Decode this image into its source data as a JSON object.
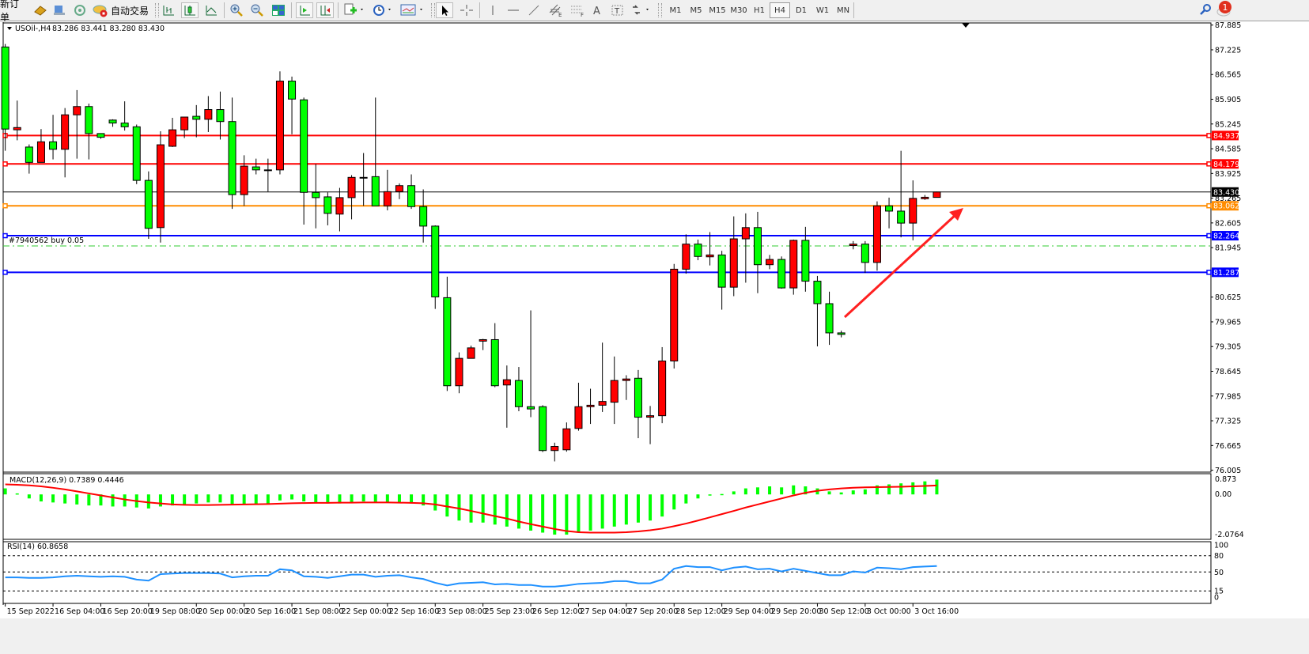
{
  "toolbar": {
    "new_order_label": "新订单",
    "auto_trading_label": "自动交易",
    "periods": [
      "M1",
      "M5",
      "M15",
      "M30",
      "H1",
      "H4",
      "D1",
      "W1",
      "MN"
    ],
    "active_period": "H4",
    "notification_count": "1",
    "icons": [
      "new-order-icon",
      "market-watch-icon",
      "navigator-icon",
      "signals-icon",
      "auto-trading-icon",
      "bar-chart-icon",
      "candlestick-icon",
      "line-chart-icon",
      "zoom-in-icon",
      "zoom-out-icon",
      "tile-windows-icon",
      "auto-scroll-icon",
      "chart-shift-icon",
      "new-chart-icon",
      "periods-icon",
      "templates-icon",
      "cursor-icon",
      "crosshair-icon",
      "vertical-line-icon",
      "horizontal-line-icon",
      "trendline-icon",
      "equidistant-channel-icon",
      "fibonacci-icon",
      "text-icon",
      "text-label-icon",
      "arrows-icon",
      "search-icon",
      "chat-icon"
    ]
  },
  "chart_data": {
    "type": "candlestick",
    "title": "USOil-,H4",
    "header_ohlc": "83.286 83.441 83.280 83.430",
    "colors": {
      "up": "#ff0000",
      "down": "#00ff00",
      "wick": "#000000"
    },
    "ylim": [
      76.005,
      87.885
    ],
    "y_ticks": [
      "87.885",
      "87.225",
      "86.565",
      "85.905",
      "85.245",
      "84.585",
      "83.925",
      "83.265",
      "82.605",
      "81.945",
      "80.625",
      "79.965",
      "79.305",
      "78.645",
      "77.985",
      "77.325",
      "76.665",
      "76.005"
    ],
    "x_labels": [
      "15 Sep 2022",
      "16 Sep 04:00",
      "16 Sep 20:00",
      "19 Sep 08:00",
      "20 Sep 00:00",
      "20 Sep 16:00",
      "21 Sep 08:00",
      "22 Sep 00:00",
      "22 Sep 16:00",
      "23 Sep 08:00",
      "25 Sep 23:00",
      "26 Sep 12:00",
      "27 Sep 04:00",
      "27 Sep 20:00",
      "28 Sep 12:00",
      "29 Sep 04:00",
      "29 Sep 20:00",
      "30 Sep 12:00",
      "3 Oct 00:00",
      "3 Oct 16:00"
    ],
    "ohlc": [
      [
        87.3,
        87.38,
        84.53,
        85.11
      ],
      [
        85.09,
        85.87,
        84.81,
        85.15
      ],
      [
        84.63,
        84.7,
        83.92,
        84.22
      ],
      [
        84.22,
        85.11,
        84.22,
        84.77
      ],
      [
        84.77,
        85.49,
        84.3,
        84.57
      ],
      [
        84.57,
        85.67,
        83.82,
        85.49
      ],
      [
        85.49,
        86.15,
        84.32,
        85.71
      ],
      [
        85.71,
        85.79,
        84.3,
        84.99
      ],
      [
        84.99,
        84.99,
        84.85,
        84.89
      ],
      [
        85.35,
        85.37,
        85.17,
        85.27
      ],
      [
        85.27,
        85.85,
        85.07,
        85.17
      ],
      [
        85.17,
        85.23,
        83.64,
        83.74
      ],
      [
        83.74,
        83.98,
        82.18,
        82.46
      ],
      [
        82.48,
        85.05,
        82.08,
        84.69
      ],
      [
        84.65,
        85.41,
        84.63,
        85.09
      ],
      [
        85.09,
        85.43,
        84.87,
        85.43
      ],
      [
        85.45,
        85.75,
        84.89,
        85.37
      ],
      [
        85.37,
        85.99,
        85.03,
        85.63
      ],
      [
        85.63,
        86.11,
        84.83,
        85.31
      ],
      [
        85.31,
        85.95,
        82.98,
        83.36
      ],
      [
        83.36,
        84.41,
        83.06,
        84.12
      ],
      [
        84.1,
        84.32,
        83.9,
        84.02
      ],
      [
        84.02,
        84.32,
        83.44,
        84.02
      ],
      [
        84.02,
        86.65,
        83.9,
        86.39
      ],
      [
        86.39,
        86.51,
        84.97,
        85.91
      ],
      [
        85.89,
        85.95,
        82.56,
        83.42
      ],
      [
        83.42,
        84.18,
        82.46,
        83.28
      ],
      [
        83.3,
        83.42,
        82.54,
        82.86
      ],
      [
        82.84,
        83.54,
        82.38,
        83.28
      ],
      [
        83.28,
        83.88,
        82.7,
        83.82
      ],
      [
        83.82,
        84.47,
        83.06,
        83.82
      ],
      [
        83.84,
        85.95,
        83.06,
        83.06
      ],
      [
        83.06,
        84.02,
        82.94,
        83.44
      ],
      [
        83.44,
        83.66,
        83.24,
        83.6
      ],
      [
        83.6,
        83.9,
        82.98,
        83.04
      ],
      [
        83.04,
        83.5,
        82.08,
        82.52
      ],
      [
        82.52,
        82.54,
        80.31,
        80.63
      ],
      [
        80.61,
        81.17,
        78.12,
        78.26
      ],
      [
        78.26,
        79.15,
        78.06,
        78.99
      ],
      [
        78.99,
        79.33,
        78.99,
        79.27
      ],
      [
        79.45,
        79.51,
        79.21,
        79.49
      ],
      [
        79.49,
        79.93,
        78.22,
        78.26
      ],
      [
        78.28,
        78.8,
        77.14,
        78.42
      ],
      [
        78.4,
        78.76,
        77.58,
        77.7
      ],
      [
        77.7,
        80.27,
        77.42,
        77.64
      ],
      [
        77.7,
        77.74,
        76.49,
        76.53
      ],
      [
        76.53,
        76.74,
        76.24,
        76.64
      ],
      [
        76.55,
        77.28,
        76.5,
        77.11
      ],
      [
        77.12,
        78.34,
        77.06,
        77.7
      ],
      [
        77.7,
        78.18,
        77.24,
        77.74
      ],
      [
        77.74,
        79.41,
        77.56,
        77.84
      ],
      [
        77.82,
        79.04,
        77.24,
        78.4
      ],
      [
        78.4,
        78.54,
        77.88,
        78.44
      ],
      [
        78.46,
        78.68,
        76.86,
        77.42
      ],
      [
        77.42,
        77.72,
        76.7,
        77.46
      ],
      [
        77.46,
        79.29,
        77.26,
        78.92
      ],
      [
        78.92,
        81.51,
        78.72,
        81.37
      ],
      [
        81.37,
        82.3,
        81.25,
        82.04
      ],
      [
        82.04,
        82.16,
        81.61,
        81.71
      ],
      [
        81.7,
        82.36,
        81.47,
        81.75
      ],
      [
        81.75,
        81.86,
        80.29,
        80.89
      ],
      [
        80.89,
        82.78,
        80.65,
        82.18
      ],
      [
        82.18,
        82.86,
        81.01,
        82.48
      ],
      [
        82.48,
        82.9,
        80.73,
        81.49
      ],
      [
        81.49,
        81.75,
        81.37,
        81.63
      ],
      [
        81.63,
        81.71,
        80.85,
        80.87
      ],
      [
        80.87,
        82.16,
        80.69,
        82.14
      ],
      [
        82.14,
        82.5,
        80.77,
        81.05
      ],
      [
        81.05,
        81.19,
        79.31,
        80.45
      ],
      [
        80.45,
        80.77,
        79.35,
        79.67
      ],
      [
        79.67,
        79.73,
        79.55,
        79.63
      ],
      [
        82.0,
        82.12,
        81.9,
        82.04
      ],
      [
        82.04,
        82.12,
        81.27,
        81.55
      ],
      [
        81.55,
        83.18,
        81.33,
        83.06
      ],
      [
        83.06,
        83.28,
        82.46,
        82.92
      ],
      [
        82.92,
        84.53,
        82.22,
        82.6
      ],
      [
        82.6,
        83.74,
        82.14,
        83.26
      ],
      [
        83.25,
        83.35,
        83.22,
        83.29
      ],
      [
        83.286,
        83.441,
        83.28,
        83.43
      ]
    ],
    "levels": [
      {
        "price": 84.937,
        "label": "84.937",
        "color": "#ff0000"
      },
      {
        "price": 84.179,
        "label": "84.179",
        "color": "#ff0000"
      },
      {
        "price": 83.43,
        "label": "83.430",
        "color": "#000000"
      },
      {
        "price": 83.062,
        "label": "83.062",
        "color": "#ff8c00"
      },
      {
        "price": 82.264,
        "label": "82.264",
        "color": "#0000ff"
      },
      {
        "price": 81.287,
        "label": "81.287",
        "color": "#0000ff"
      }
    ],
    "order_line": {
      "price": 81.99,
      "label": "#7940562 buy 0.05",
      "color": "#32cd32"
    },
    "annotation": {
      "type": "arrow",
      "color": "#ff0000",
      "direction": "up-right"
    },
    "macd": {
      "label": "MACD(12,26,9) 0.7389 0.4446",
      "ylim": [
        -2.0764,
        0.873
      ],
      "y_ticks": [
        "0.873",
        "0.00",
        "-2.0764"
      ],
      "colors": {
        "histogram": "#00ff00",
        "signal": "#ff0000"
      },
      "main": [
        0.3,
        0.05,
        -0.2,
        -0.35,
        -0.4,
        -0.45,
        -0.5,
        -0.55,
        -0.55,
        -0.6,
        -0.6,
        -0.65,
        -0.7,
        -0.6,
        -0.55,
        -0.5,
        -0.45,
        -0.4,
        -0.4,
        -0.5,
        -0.5,
        -0.5,
        -0.45,
        -0.3,
        -0.25,
        -0.35,
        -0.4,
        -0.45,
        -0.45,
        -0.4,
        -0.35,
        -0.4,
        -0.4,
        -0.4,
        -0.45,
        -0.55,
        -0.8,
        -1.1,
        -1.3,
        -1.4,
        -1.4,
        -1.5,
        -1.6,
        -1.7,
        -1.8,
        -1.9,
        -2.0,
        -2.0,
        -1.9,
        -1.8,
        -1.7,
        -1.6,
        -1.5,
        -1.4,
        -1.3,
        -1.1,
        -0.75,
        -0.45,
        -0.2,
        -0.05,
        0.02,
        0.15,
        0.3,
        0.35,
        0.4,
        0.35,
        0.45,
        0.4,
        0.3,
        0.15,
        0.1,
        0.2,
        0.25,
        0.45,
        0.5,
        0.55,
        0.6,
        0.65,
        0.7389
      ],
      "signal": [
        0.5,
        0.48,
        0.45,
        0.4,
        0.33,
        0.25,
        0.15,
        0.05,
        -0.05,
        -0.15,
        -0.25,
        -0.33,
        -0.4,
        -0.45,
        -0.5,
        -0.52,
        -0.53,
        -0.53,
        -0.52,
        -0.51,
        -0.5,
        -0.49,
        -0.48,
        -0.46,
        -0.44,
        -0.43,
        -0.42,
        -0.42,
        -0.41,
        -0.41,
        -0.4,
        -0.4,
        -0.4,
        -0.41,
        -0.42,
        -0.44,
        -0.5,
        -0.6,
        -0.7,
        -0.82,
        -0.95,
        -1.08,
        -1.2,
        -1.35,
        -1.48,
        -1.6,
        -1.72,
        -1.82,
        -1.88,
        -1.9,
        -1.9,
        -1.9,
        -1.88,
        -1.84,
        -1.78,
        -1.7,
        -1.58,
        -1.45,
        -1.3,
        -1.14,
        -0.98,
        -0.82,
        -0.65,
        -0.5,
        -0.35,
        -0.2,
        -0.05,
        0.08,
        0.18,
        0.25,
        0.3,
        0.33,
        0.35,
        0.36,
        0.37,
        0.38,
        0.4,
        0.42,
        0.4446
      ]
    },
    "rsi": {
      "label": "RSI(14) 60.8658",
      "ylim": [
        0,
        100
      ],
      "y_ticks": [
        "100",
        "80",
        "50",
        "15",
        "0"
      ],
      "levels": [
        80,
        50,
        15
      ],
      "color": "#1e90ff",
      "values": [
        40,
        40,
        39,
        39,
        40,
        42,
        43,
        42,
        41,
        42,
        41,
        36,
        34,
        46,
        47,
        48,
        48,
        48,
        47,
        40,
        42,
        43,
        43,
        55,
        53,
        42,
        41,
        39,
        42,
        45,
        45,
        41,
        43,
        44,
        40,
        37,
        30,
        25,
        29,
        30,
        31,
        27,
        28,
        26,
        26,
        23,
        23,
        25,
        28,
        29,
        30,
        33,
        33,
        29,
        29,
        36,
        56,
        61,
        59,
        59,
        53,
        58,
        60,
        55,
        56,
        51,
        56,
        52,
        48,
        44,
        44,
        51,
        49,
        58,
        57,
        55,
        59,
        60,
        60.8658
      ]
    }
  }
}
